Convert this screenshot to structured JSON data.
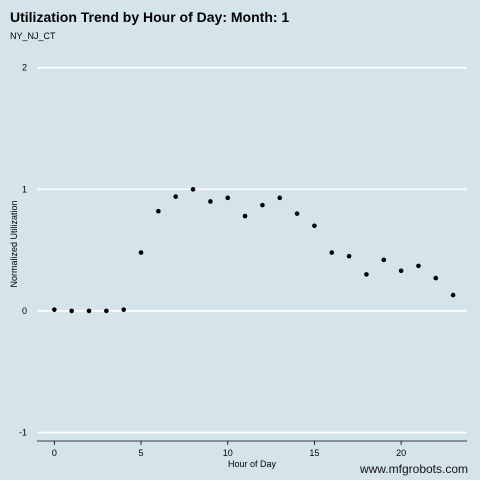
{
  "chart_data": {
    "type": "scatter",
    "title": "Utilization Trend by Hour of Day: Month: 1",
    "subtitle": "NY_NJ_CT",
    "xlabel": "Hour of Day",
    "ylabel": "Normalized Utilization",
    "xlim": [
      -1,
      23.8
    ],
    "ylim": [
      -1.07,
      2.08
    ],
    "xticks": [
      0,
      5,
      10,
      15,
      20
    ],
    "yticks": [
      -1,
      0,
      1,
      2
    ],
    "grid": "horizontal major lines",
    "points": [
      {
        "x": 0,
        "y": 0.01
      },
      {
        "x": 1,
        "y": 0.0
      },
      {
        "x": 2,
        "y": 0.0
      },
      {
        "x": 3,
        "y": 0.0
      },
      {
        "x": 4,
        "y": 0.01
      },
      {
        "x": 5,
        "y": 0.48
      },
      {
        "x": 6,
        "y": 0.82
      },
      {
        "x": 7,
        "y": 0.94
      },
      {
        "x": 8,
        "y": 1.0
      },
      {
        "x": 9,
        "y": 0.9
      },
      {
        "x": 10,
        "y": 0.93
      },
      {
        "x": 11,
        "y": 0.78
      },
      {
        "x": 12,
        "y": 0.87
      },
      {
        "x": 13,
        "y": 0.93
      },
      {
        "x": 14,
        "y": 0.8
      },
      {
        "x": 15,
        "y": 0.7
      },
      {
        "x": 16,
        "y": 0.48
      },
      {
        "x": 17,
        "y": 0.45
      },
      {
        "x": 18,
        "y": 0.3
      },
      {
        "x": 19,
        "y": 0.42
      },
      {
        "x": 20,
        "y": 0.33
      },
      {
        "x": 21,
        "y": 0.37
      },
      {
        "x": 22,
        "y": 0.27
      },
      {
        "x": 23,
        "y": 0.13
      }
    ]
  },
  "watermark": "www.mfgrobots.com",
  "colors": {
    "background": "#d5e4eb",
    "gridline": "#ffffff",
    "point": "#000000"
  }
}
